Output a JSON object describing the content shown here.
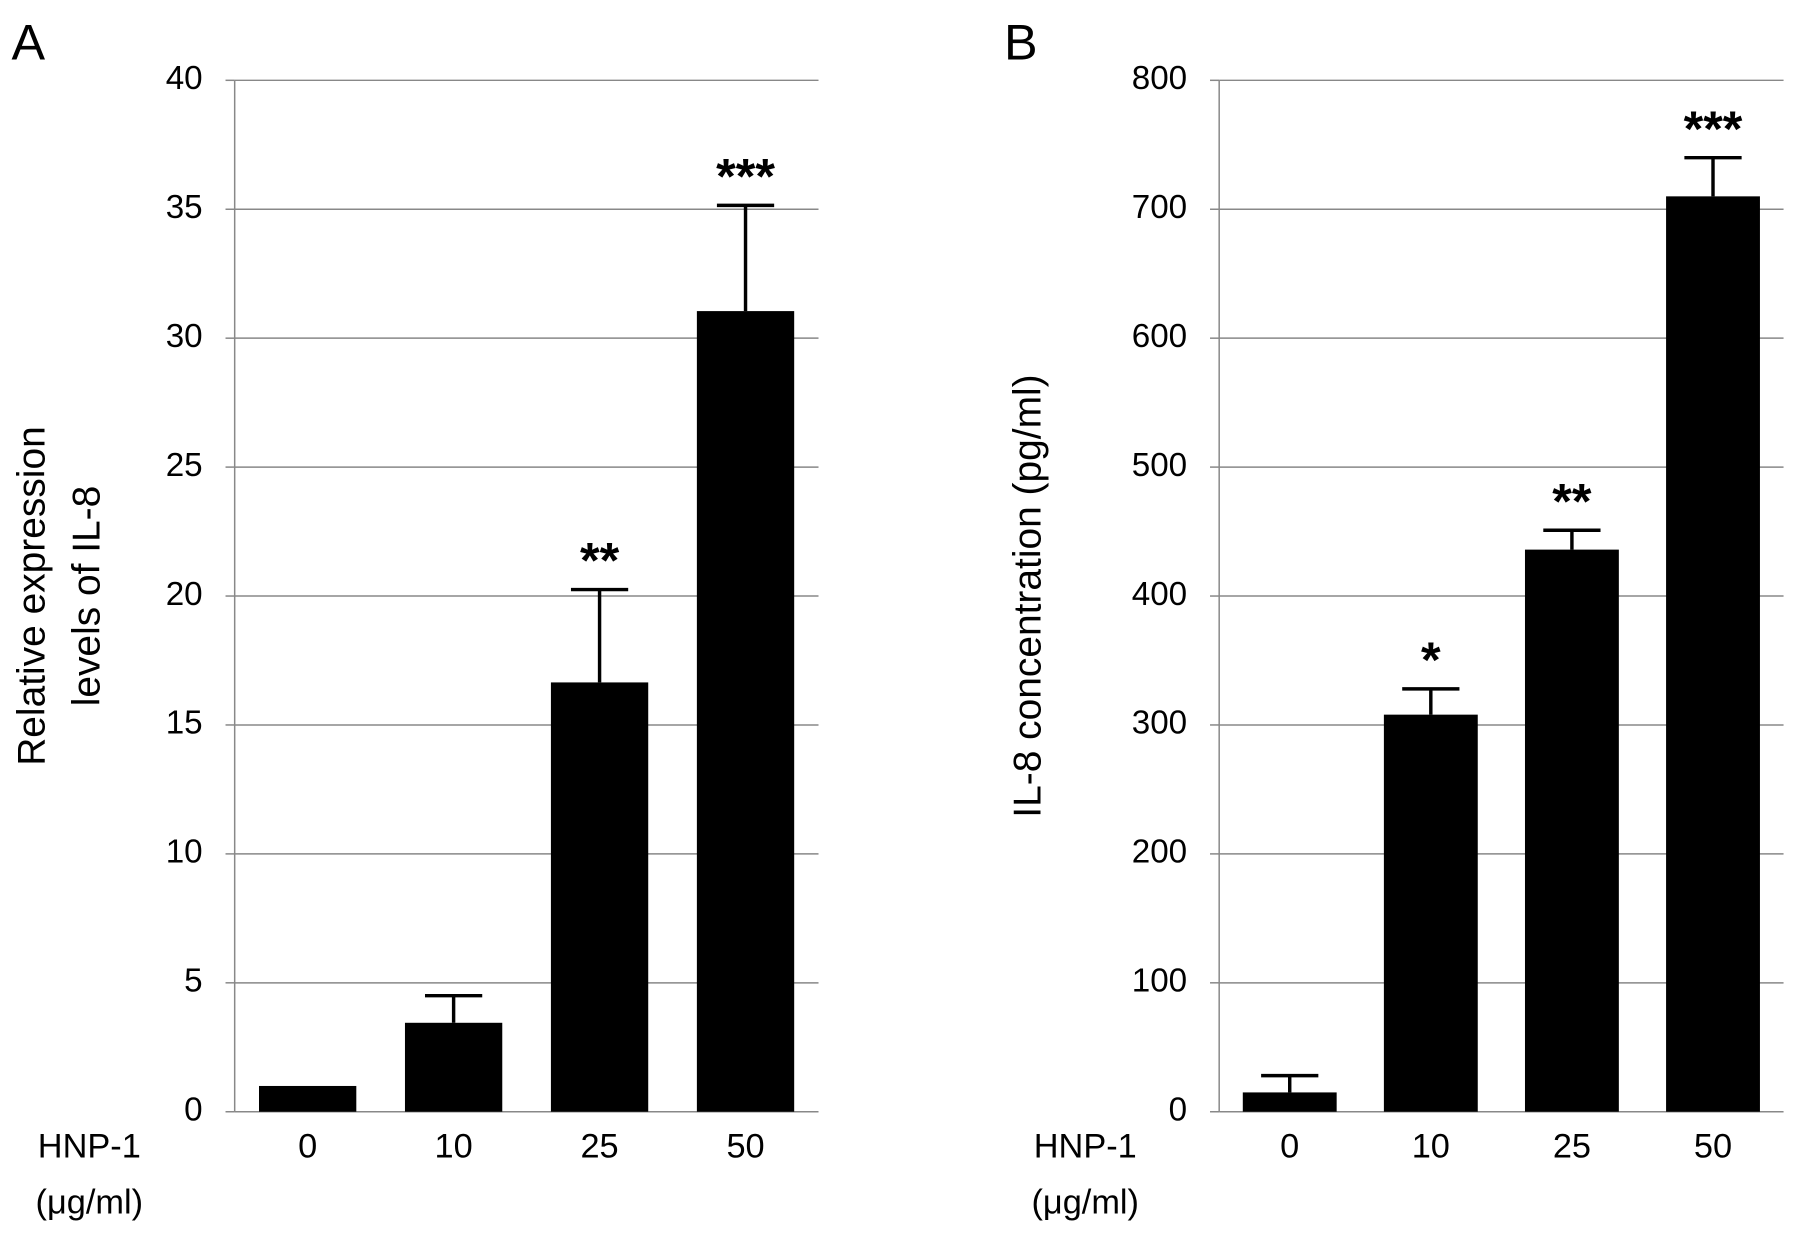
{
  "chart_data": [
    {
      "type": "bar",
      "panel": "A",
      "y_label": [
        "Relative expression",
        "levels of IL-8"
      ],
      "x_label": [
        "HNP-1",
        "(μg/ml)"
      ],
      "categories": [
        "0",
        "10",
        "25",
        "50"
      ],
      "values": [
        1,
        3.45,
        16.65,
        31.05
      ],
      "errors": [
        null,
        1.05,
        3.6,
        4.1
      ],
      "annotations": [
        null,
        null,
        "**",
        "***"
      ],
      "color": "#000000",
      "ylim": [
        0,
        40
      ],
      "yticks": [
        0,
        5,
        10,
        15,
        20,
        25,
        30,
        35,
        40
      ],
      "grid": true
    },
    {
      "type": "bar",
      "panel": "B",
      "y_label": [
        "IL-8 concentration (pg/ml)"
      ],
      "x_label": [
        "HNP-1",
        "(μg/ml)"
      ],
      "categories": [
        "0",
        "10",
        "25",
        "50"
      ],
      "values": [
        15,
        308,
        436,
        710
      ],
      "errors": [
        13,
        20,
        15,
        30
      ],
      "annotations": [
        null,
        "*",
        "**",
        "***"
      ],
      "color": "#000000",
      "ylim": [
        0,
        800
      ],
      "yticks": [
        0,
        100,
        200,
        300,
        400,
        500,
        600,
        700,
        800
      ],
      "grid": true
    }
  ]
}
